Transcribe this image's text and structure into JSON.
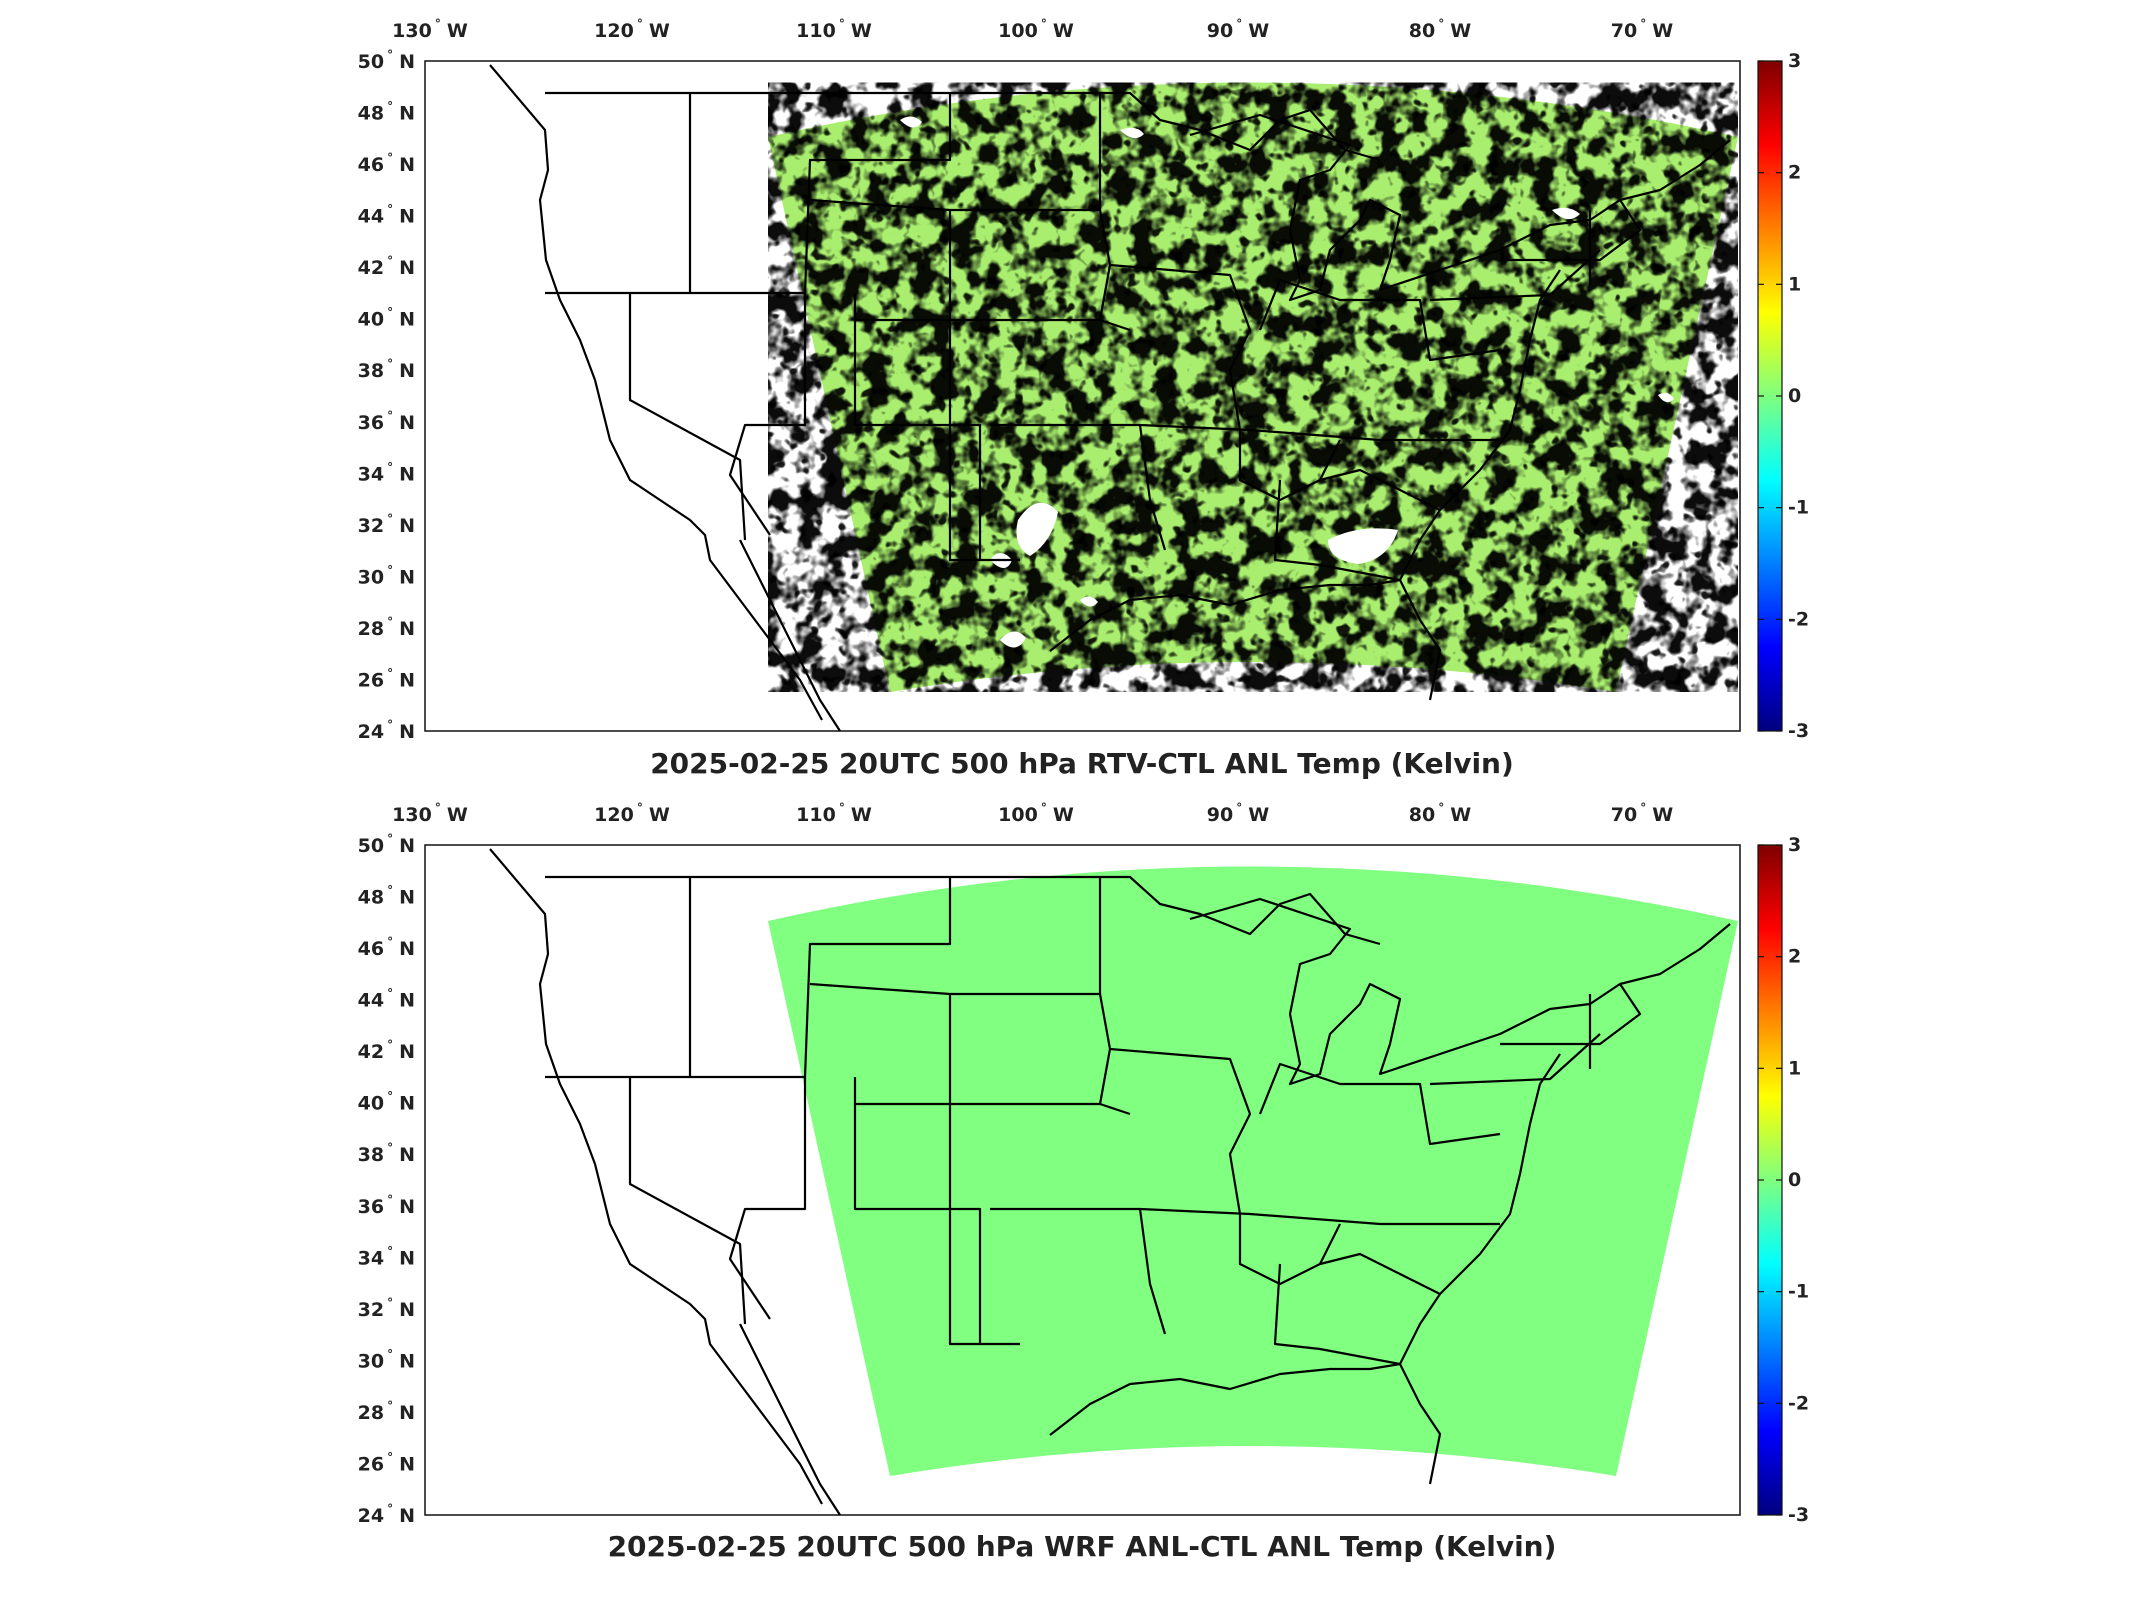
{
  "panels": [
    {
      "id": "rtv",
      "title": "2025-02-25 20UTC 500 hPa RTV-CTL ANL Temp (Kelvin)",
      "field": "mixed-positive-anomaly"
    },
    {
      "id": "wrf",
      "title": "2025-02-25 20UTC 500 hPa WRF ANL-CTL ANL Temp (Kelvin)",
      "field": "uniform-zero"
    }
  ],
  "lon_labels": [
    {
      "value": -130,
      "text": "130",
      "suffix": "W"
    },
    {
      "value": -120,
      "text": "120",
      "suffix": "W"
    },
    {
      "value": -110,
      "text": "110",
      "suffix": "W"
    },
    {
      "value": -100,
      "text": "100",
      "suffix": "W"
    },
    {
      "value": -90,
      "text": "90",
      "suffix": "W"
    },
    {
      "value": -80,
      "text": "80",
      "suffix": "W"
    },
    {
      "value": -70,
      "text": "70",
      "suffix": "W"
    }
  ],
  "lat_labels": [
    {
      "value": 50,
      "text": "50",
      "suffix": "N"
    },
    {
      "value": 48,
      "text": "48",
      "suffix": "N"
    },
    {
      "value": 46,
      "text": "46",
      "suffix": "N"
    },
    {
      "value": 44,
      "text": "44",
      "suffix": "N"
    },
    {
      "value": 42,
      "text": "42",
      "suffix": "N"
    },
    {
      "value": 40,
      "text": "40",
      "suffix": "N"
    },
    {
      "value": 38,
      "text": "38",
      "suffix": "N"
    },
    {
      "value": 36,
      "text": "36",
      "suffix": "N"
    },
    {
      "value": 34,
      "text": "34",
      "suffix": "N"
    },
    {
      "value": 32,
      "text": "32",
      "suffix": "N"
    },
    {
      "value": 30,
      "text": "30",
      "suffix": "N"
    },
    {
      "value": 28,
      "text": "28",
      "suffix": "N"
    },
    {
      "value": 26,
      "text": "26",
      "suffix": "N"
    },
    {
      "value": 24,
      "text": "24",
      "suffix": "N"
    }
  ],
  "colorbar": {
    "min": -3,
    "max": 3,
    "ticks": [
      "3",
      "2",
      "1",
      "0",
      "-1",
      "-2",
      "-3"
    ],
    "colormap": "jet",
    "colors": [
      "#00007f",
      "#0000ff",
      "#007fff",
      "#00ffff",
      "#7fff7f",
      "#ffff00",
      "#ff7f00",
      "#ff0000",
      "#7f0000"
    ]
  },
  "colors": {
    "field_uniform": "#80ff80",
    "field_cyan": "#5fe7a8",
    "field_yellow": "#ecf53d",
    "coast": "#000000"
  }
}
